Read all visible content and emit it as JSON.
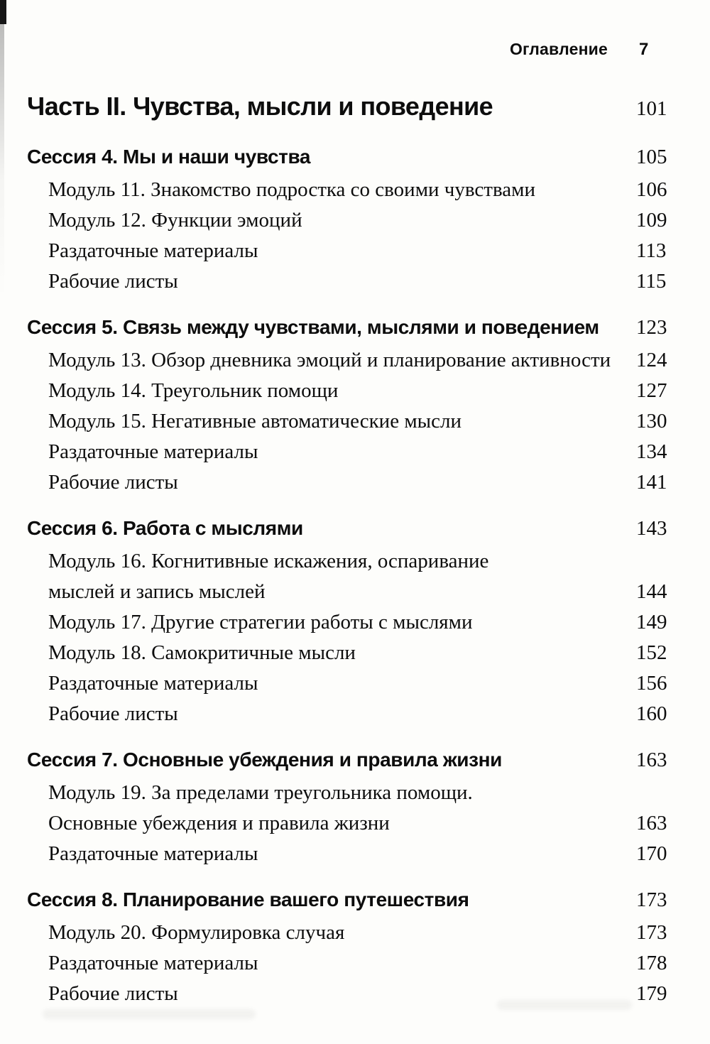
{
  "header": {
    "running_head": "Оглавление",
    "page_number": "7"
  },
  "part": {
    "title": "Часть II. Чувства, мысли и поведение",
    "page": "101"
  },
  "sections": [
    {
      "title": "Сессия 4. Мы и наши чувства",
      "page": "105",
      "entries": [
        {
          "label": "Модуль 11. Знакомство подростка со своими чувствами",
          "page": "106"
        },
        {
          "label": "Модуль 12. Функции эмоций",
          "page": "109"
        },
        {
          "label": "Раздаточные материалы",
          "page": "113"
        },
        {
          "label": "Рабочие листы",
          "page": "115"
        }
      ]
    },
    {
      "title": "Сессия 5. Связь между чувствами, мыслями и поведением",
      "page": "123",
      "entries": [
        {
          "label": "Модуль 13. Обзор дневника эмоций и планирование активности",
          "page": "124"
        },
        {
          "label": "Модуль 14. Треугольник помощи",
          "page": "127"
        },
        {
          "label": "Модуль 15. Негативные автоматические мысли",
          "page": "130"
        },
        {
          "label": "Раздаточные материалы",
          "page": "134"
        },
        {
          "label": "Рабочие листы",
          "page": "141"
        }
      ]
    },
    {
      "title": "Сессия 6. Работа с мыслями",
      "page": "143",
      "entries": [
        {
          "label": "Модуль 16. Когнитивные искажения, оспаривание\nмыслей и запись мыслей",
          "page": "144"
        },
        {
          "label": "Модуль 17. Другие стратегии работы с мыслями",
          "page": "149"
        },
        {
          "label": "Модуль 18. Самокритичные мысли",
          "page": "152"
        },
        {
          "label": "Раздаточные материалы",
          "page": "156"
        },
        {
          "label": "Рабочие листы",
          "page": "160"
        }
      ]
    },
    {
      "title": "Сессия 7. Основные убеждения и правила жизни",
      "page": "163",
      "entries": [
        {
          "label": "Модуль 19. За пределами треугольника помощи.\nОсновные убеждения и правила жизни",
          "page": "163"
        },
        {
          "label": "Раздаточные материалы",
          "page": "170"
        }
      ]
    },
    {
      "title": "Сессия 8. Планирование вашего путешествия",
      "page": "173",
      "entries": [
        {
          "label": "Модуль 20. Формулировка случая",
          "page": "173"
        },
        {
          "label": "Раздаточные материалы",
          "page": "178"
        },
        {
          "label": "Рабочие листы",
          "page": "179"
        }
      ]
    }
  ]
}
